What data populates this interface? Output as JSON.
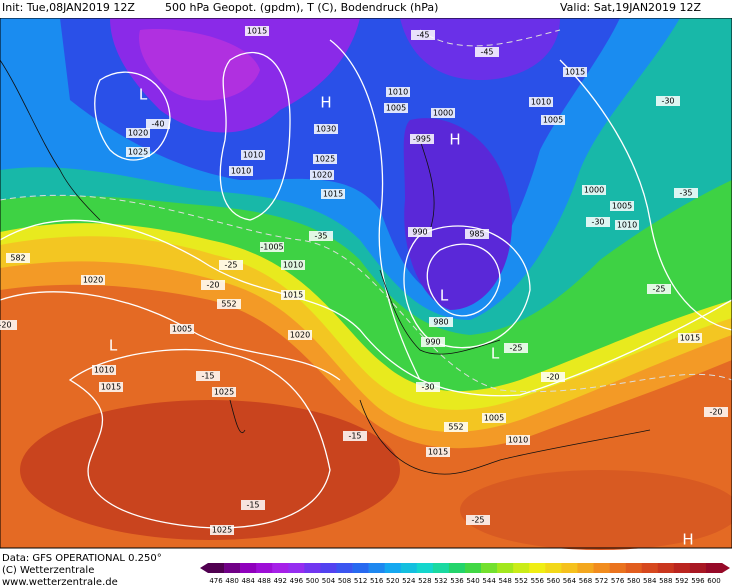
{
  "header": {
    "init": "Init: Tue,08JAN2019 12Z",
    "product": "500 hPa Geopot. (gpdm), T (C), Bodendruck (hPa)",
    "valid": "Valid: Sat,19JAN2019 12Z"
  },
  "footer": {
    "data": "Data: GFS OPERATIONAL 0.250°",
    "copyright": "(C) Wetterzentrale",
    "url": "www.wetterzentrale.de"
  },
  "colorbar": {
    "ticks": [
      476,
      480,
      484,
      488,
      492,
      496,
      500,
      504,
      508,
      512,
      516,
      520,
      524,
      528,
      532,
      536,
      540,
      544,
      548,
      552,
      556,
      560,
      564,
      568,
      572,
      576,
      580,
      584,
      588,
      592,
      596,
      600
    ]
  },
  "map_labels": [
    "1015",
    "-45",
    "-45",
    "1015",
    "L",
    "H",
    "1010",
    "1005",
    "1010",
    "1005",
    "-30",
    "-40",
    "1020",
    "1025",
    "1030",
    "1000",
    "-995",
    "H",
    "1010",
    "1010",
    "1025",
    "1020",
    "1015",
    "1000",
    "-35",
    "1005",
    "-30",
    "1010",
    "990",
    "985",
    "-1005",
    "-35",
    "582",
    "-25",
    "1010",
    "1020",
    "-20",
    "1015",
    "552",
    "L",
    "-25",
    "980",
    "1005",
    "1020",
    "990",
    "L",
    "-25",
    "1015",
    "L",
    "1010",
    "-15",
    "-20",
    "1015",
    "-30",
    "1025",
    "-20",
    "1005",
    "552",
    "-15",
    "1010",
    "1015",
    "-25",
    "-15",
    "1025",
    "H",
    "-20"
  ]
}
